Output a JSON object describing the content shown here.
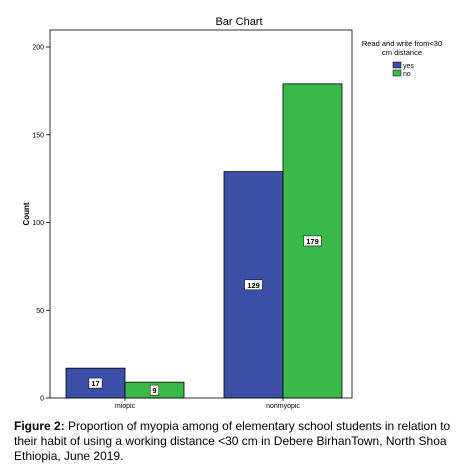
{
  "caption": {
    "label": "Figure 2:",
    "text": "Proportion of myopia among of elementary school students in relation to their habit of using a working distance <30 cm in Debere BirhanTown, North Shoa Ethiopia, June 2019."
  },
  "colors": {
    "yes": "#3c4fa6",
    "no": "#3bb84a"
  },
  "chart_data": {
    "type": "bar",
    "title": "Bar Chart",
    "xlabel": "",
    "ylabel": "Count",
    "categories": [
      "miopic",
      "nonmyopic"
    ],
    "series": [
      {
        "name": "yes",
        "values": [
          17,
          129
        ]
      },
      {
        "name": "no",
        "values": [
          9,
          179
        ]
      }
    ],
    "ylim": [
      0,
      200
    ],
    "yticks": [
      0,
      50,
      100,
      150,
      200
    ],
    "grid": false,
    "legend": {
      "title": "Read and write from<30 cm distance",
      "title_lines": [
        "Read and write from<30",
        "cm distance"
      ],
      "placement": "top-right"
    },
    "data_labels": true
  }
}
